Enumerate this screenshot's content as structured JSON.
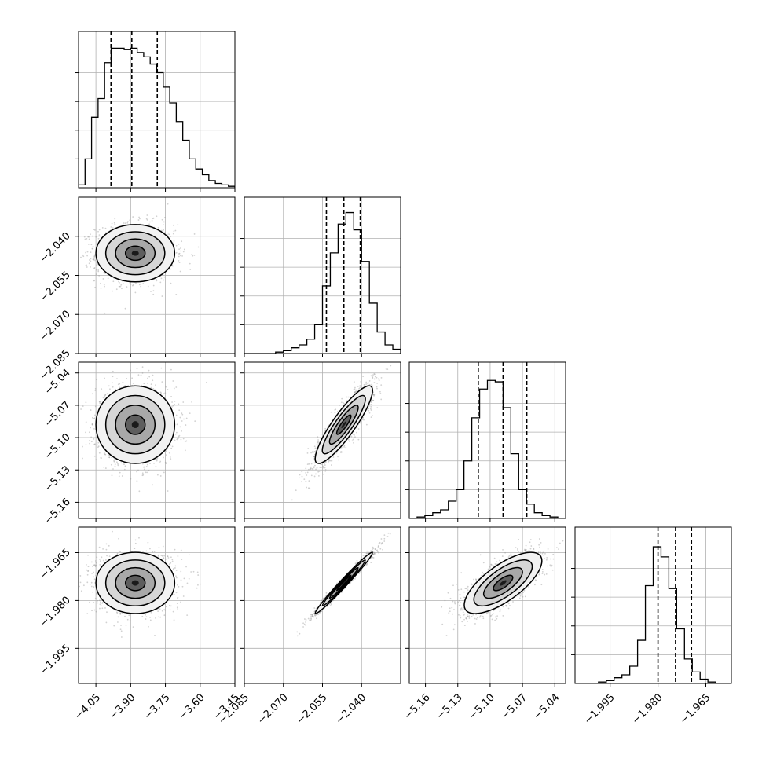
{
  "chart_data": {
    "type": "corner",
    "title": "",
    "parameters": [
      {
        "label": "",
        "range": [
          -4.125,
          -3.45
        ],
        "ticks": [
          -4.05,
          -3.9,
          -3.75,
          -3.6,
          -3.45
        ],
        "tick_labels": [
          "−4.05",
          "−3.90",
          "−3.75",
          "−3.60",
          "−3.45"
        ],
        "quantiles": [
          -3.985,
          -3.895,
          -3.785
        ],
        "hist_counts": [
          0.02,
          0.2,
          0.49,
          0.62,
          0.87,
          0.97,
          0.97,
          0.96,
          0.97,
          0.94,
          0.91,
          0.86,
          0.8,
          0.7,
          0.59,
          0.46,
          0.33,
          0.2,
          0.13,
          0.09,
          0.05,
          0.03,
          0.02,
          0.01
        ]
      },
      {
        "label": "",
        "range": [
          -2.085,
          -2.025
        ],
        "ticks": [
          -2.085,
          -2.07,
          -2.055,
          -2.04
        ],
        "tick_labels": [
          "−2.085",
          "−2.070",
          "−2.055",
          "−2.040"
        ],
        "quantiles": [
          -2.0535,
          -2.0468,
          -2.0405
        ],
        "hist_counts": [
          0.0,
          0.0,
          0.0,
          0.0,
          0.01,
          0.02,
          0.04,
          0.06,
          0.1,
          0.2,
          0.47,
          0.7,
          0.9,
          0.98,
          0.86,
          0.64,
          0.35,
          0.15,
          0.06,
          0.03
        ]
      },
      {
        "label": "",
        "range": [
          -5.175,
          -5.03
        ],
        "ticks": [
          -5.16,
          -5.13,
          -5.1,
          -5.07,
          -5.04
        ],
        "tick_labels": [
          "−5.16",
          "−5.13",
          "−5.10",
          "−5.07",
          "−5.04"
        ],
        "quantiles": [
          -5.111,
          -5.088,
          -5.066
        ],
        "hist_counts": [
          0.0,
          0.01,
          0.02,
          0.04,
          0.06,
          0.12,
          0.2,
          0.4,
          0.7,
          0.9,
          0.96,
          0.95,
          0.77,
          0.45,
          0.2,
          0.1,
          0.04,
          0.02,
          0.01,
          0.0
        ]
      },
      {
        "label": "",
        "range": [
          -2.006,
          -1.957
        ],
        "ticks": [
          -1.995,
          -1.98,
          -1.965
        ],
        "tick_labels": [
          "−1.995",
          "−1.980",
          "−1.965"
        ],
        "quantiles": [
          -1.98,
          -1.9745,
          -1.9695
        ],
        "hist_counts": [
          0.0,
          0.0,
          0.0,
          0.01,
          0.02,
          0.04,
          0.06,
          0.12,
          0.3,
          0.68,
          0.95,
          0.88,
          0.66,
          0.38,
          0.17,
          0.08,
          0.03,
          0.01,
          0.0,
          0.0
        ]
      }
    ],
    "pairs": [
      {
        "row": 1,
        "col": 0,
        "mean": [
          -3.88,
          -2.0465
        ],
        "sd": [
          0.085,
          0.0055
        ],
        "rho": 0.0
      },
      {
        "row": 2,
        "col": 0,
        "mean": [
          -3.88,
          -5.088
        ],
        "sd": [
          0.085,
          0.018
        ],
        "rho": 0.0
      },
      {
        "row": 2,
        "col": 1,
        "mean": [
          -2.0468,
          -5.088
        ],
        "sd": [
          0.0055,
          0.018
        ],
        "rho": 0.88
      },
      {
        "row": 3,
        "col": 0,
        "mean": [
          -3.88,
          -1.9745
        ],
        "sd": [
          0.085,
          0.0048
        ],
        "rho": 0.0
      },
      {
        "row": 3,
        "col": 1,
        "mean": [
          -2.0468,
          -1.9745
        ],
        "sd": [
          0.0055,
          0.0048
        ],
        "rho": 0.985
      },
      {
        "row": 3,
        "col": 2,
        "mean": [
          -5.088,
          -1.9745
        ],
        "sd": [
          0.018,
          0.0048
        ],
        "rho": 0.72
      }
    ],
    "contour_levels_sigma": [
      0.5,
      1.0,
      1.5,
      2.0
    ],
    "grid": true,
    "colors": {
      "line": "#000000",
      "scatter": "#9a9a9a",
      "grid": "#b0b0b0",
      "axes": "#000000"
    }
  }
}
